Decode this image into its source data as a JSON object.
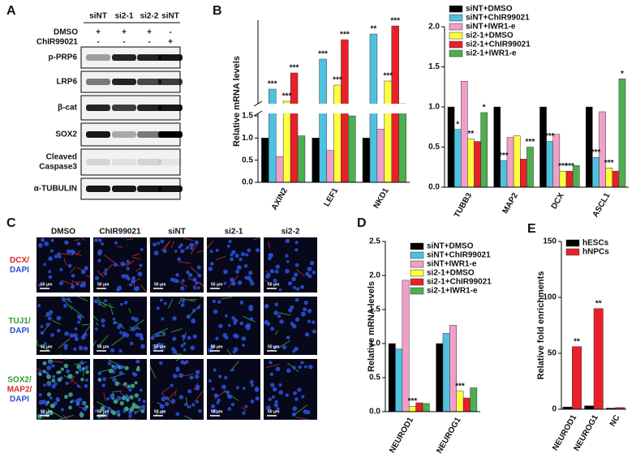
{
  "panel_labels": [
    "A",
    "B",
    "C",
    "D",
    "E"
  ],
  "blot": {
    "columns": [
      "siNT",
      "si2-1",
      "si2-2",
      "siNT"
    ],
    "treatments": [
      {
        "name": "DMSO",
        "marks": [
          "+",
          "+",
          "+",
          "-"
        ]
      },
      {
        "name": "ChIR99021",
        "marks": [
          "-",
          "-",
          "-",
          "+"
        ]
      }
    ],
    "rows": [
      [
        "p-PRP6"
      ],
      [
        "LRP6"
      ],
      [
        "β-cat"
      ],
      [
        "SOX2"
      ],
      [
        "Cleaved",
        "Caspase3"
      ],
      [
        "α-TUBULIN"
      ]
    ]
  },
  "microscopy": {
    "columns": [
      "DMSO",
      "ChIR99021",
      "siNT",
      "si2-1",
      "si2-2"
    ],
    "rows": [
      [
        {
          "text": "DCX/",
          "color": "#d42a2a"
        },
        {
          "text": "DAPI",
          "color": "#2a4fd4"
        }
      ],
      [
        {
          "text": "TUJ1/",
          "color": "#2a9d2a"
        },
        {
          "text": "DAPI",
          "color": "#2a4fd4"
        }
      ],
      [
        {
          "text": "SOX2/",
          "color": "#2a9d2a"
        },
        {
          "text": "MAP2/",
          "color": "#d42a2a"
        },
        {
          "text": "DAPI",
          "color": "#2a4fd4"
        }
      ]
    ],
    "scale_bar": "50 μm"
  },
  "chart_data": [
    {
      "type": "bar",
      "ylabel": "Relative mRNA levels",
      "categories": [
        "AXIN2",
        "LEF1",
        "NKD1"
      ],
      "series": [
        {
          "name": "siNT+DMSO",
          "color": "#000000",
          "values": [
            1,
            1,
            1
          ]
        },
        {
          "name": "siNT+ChIR99021",
          "color": "#4fc1e0",
          "values": [
            3.5,
            7.2,
            10.3
          ]
        },
        {
          "name": "siNT+IWR1-e",
          "color": "#f0a0c8",
          "values": [
            0.58,
            0.72,
            1.2
          ]
        },
        {
          "name": "si2-1+DMSO",
          "color": "#ffff40",
          "values": [
            2,
            4,
            4.5
          ]
        },
        {
          "name": "si2-1+ChIR99021",
          "color": "#e8202a",
          "values": [
            5.5,
            9.6,
            11.3
          ]
        },
        {
          "name": "si2-1+IWR1-e",
          "color": "#4caf50",
          "values": [
            1.05,
            1.5,
            1.7
          ]
        }
      ],
      "ylim": [
        0,
        1.5
      ],
      "ylim_upper": [
        2,
        12
      ],
      "yticks": [
        {
          "value": 0,
          "label": "0.0"
        },
        {
          "value": 0.5,
          "label": "0.5"
        },
        {
          "value": 1,
          "label": "1.0"
        },
        {
          "value": 1.5,
          "label": "1.5"
        }
      ],
      "legend": "none",
      "annotations": [
        {
          "label": "***",
          "series": 1,
          "category": 0
        },
        {
          "label": "***",
          "series": 3,
          "category": 0
        },
        {
          "label": "***",
          "series": 4,
          "category": 0
        },
        {
          "label": "***",
          "series": 1,
          "category": 1
        },
        {
          "label": "***",
          "series": 3,
          "category": 1
        },
        {
          "label": "***",
          "series": 4,
          "category": 1
        },
        {
          "label": "**",
          "series": 1,
          "category": 2
        },
        {
          "label": "***",
          "series": 3,
          "category": 2
        },
        {
          "label": "***",
          "series": 4,
          "category": 2
        }
      ]
    },
    {
      "type": "bar",
      "categories": [
        "TUBB3",
        "MAP2",
        "DCX",
        "ASCL1"
      ],
      "series": [
        {
          "name": "siNT+DMSO",
          "color": "#000000",
          "values": [
            1,
            1,
            1,
            1
          ]
        },
        {
          "name": "siNT+ChIR99021",
          "color": "#4fc1e0",
          "values": [
            0.72,
            0.33,
            0.57,
            0.37
          ]
        },
        {
          "name": "siNT+IWR1-e",
          "color": "#f0a0c8",
          "values": [
            1.32,
            0.62,
            0.66,
            0.94
          ]
        },
        {
          "name": "si2-1+DMSO",
          "color": "#ffff40",
          "values": [
            0.6,
            0.64,
            0.2,
            0.24
          ]
        },
        {
          "name": "si2-1+ChIR99021",
          "color": "#e8202a",
          "values": [
            0.57,
            0.35,
            0.2,
            0.2
          ]
        },
        {
          "name": "si2-1+IWR1-e",
          "color": "#4caf50",
          "values": [
            0.93,
            0.5,
            0.27,
            1.35
          ]
        }
      ],
      "ylim": [
        0,
        2
      ],
      "yticks": [
        {
          "value": 0,
          "label": "0.0"
        },
        {
          "value": 0.5,
          "label": "0.5"
        },
        {
          "value": 1,
          "label": "1.0"
        },
        {
          "value": 1.5,
          "label": "1.5"
        },
        {
          "value": 2,
          "label": "2.0"
        }
      ],
      "legend": "top-left",
      "annotations": [
        {
          "label": "*",
          "series": 1,
          "category": 0
        },
        {
          "label": "**",
          "series": 3,
          "category": 0
        },
        {
          "label": "*",
          "series": 5,
          "category": 0
        },
        {
          "label": "***",
          "series": 1,
          "category": 1
        },
        {
          "label": "***",
          "series": 5,
          "category": 1
        },
        {
          "label": "***",
          "series": 1,
          "category": 2
        },
        {
          "label": "***",
          "series": 3,
          "category": 2
        },
        {
          "label": "***",
          "series": 4,
          "category": 2
        },
        {
          "label": "***",
          "series": 1,
          "category": 3
        },
        {
          "label": "***",
          "series": 3,
          "category": 3
        },
        {
          "label": "*",
          "series": 5,
          "category": 3
        }
      ]
    },
    {
      "type": "bar",
      "ylabel": "Relative mRNA levels",
      "categories": [
        "NEUROD1",
        "NEUROG1"
      ],
      "series": [
        {
          "name": "siNT+DMSO",
          "color": "#000000",
          "values": [
            1,
            1
          ]
        },
        {
          "name": "siNT+ChIR99021",
          "color": "#4fc1e0",
          "values": [
            0.92,
            1.15
          ]
        },
        {
          "name": "siNT+IWR1-e",
          "color": "#f0a0c8",
          "values": [
            1.93,
            1.27
          ]
        },
        {
          "name": "si2-1+DMSO",
          "color": "#ffff40",
          "values": [
            0.08,
            0.3
          ]
        },
        {
          "name": "si2-1+ChIR99021",
          "color": "#e8202a",
          "values": [
            0.13,
            0.2
          ]
        },
        {
          "name": "si2-1+IWR1-e",
          "color": "#4caf50",
          "values": [
            0.12,
            0.35
          ]
        }
      ],
      "ylim": [
        0,
        2.5
      ],
      "yticks": [
        {
          "value": 0,
          "label": "0.0"
        },
        {
          "value": 0.5,
          "label": "0.5"
        },
        {
          "value": 1,
          "label": "1.0"
        },
        {
          "value": 1.5,
          "label": "1.5"
        },
        {
          "value": 2,
          "label": "2.0"
        },
        {
          "value": 2.5,
          "label": "2.5"
        }
      ],
      "legend": "top-right",
      "annotations": [
        {
          "label": "***",
          "series": 3,
          "category": 0
        },
        {
          "label": "***",
          "series": 3,
          "category": 1
        }
      ]
    },
    {
      "type": "bar",
      "ylabel": "Relative fold enrichments",
      "categories": [
        "NEUROD1",
        "NEUROG1",
        "NC"
      ],
      "series": [
        {
          "name": "hESCs",
          "color": "#000000",
          "values": [
            2,
            3,
            1
          ]
        },
        {
          "name": "hNPCs",
          "color": "#e8202a",
          "values": [
            56,
            90,
            1.5
          ]
        }
      ],
      "ylim": [
        0,
        150
      ],
      "yticks": [
        0,
        50,
        100,
        150
      ],
      "legend": "top-left",
      "annotations": [
        {
          "label": "**",
          "series": 1,
          "category": 0
        },
        {
          "label": "**",
          "series": 1,
          "category": 1
        }
      ]
    }
  ]
}
